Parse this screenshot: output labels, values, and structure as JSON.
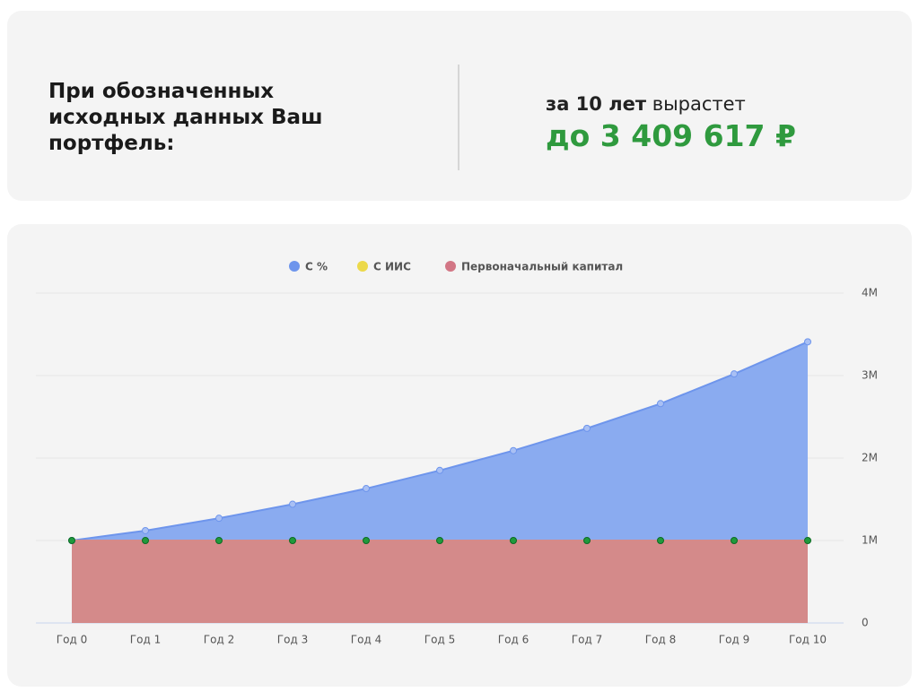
{
  "summary": {
    "text": "При обозначенных исходных данных Ваш портфель:",
    "period": "за 10 лет",
    "verb": "вырастет",
    "result": "до 3 409 617 ₽"
  },
  "chart_data": {
    "type": "area",
    "categories": [
      "Год 0",
      "Год 1",
      "Год 2",
      "Год 3",
      "Год 4",
      "Год 5",
      "Год 6",
      "Год 7",
      "Год 8",
      "Год 9",
      "Год 10"
    ],
    "series": [
      {
        "name": "С %",
        "color": "#6e95ec",
        "values": [
          1000000,
          1120000,
          1270000,
          1440000,
          1630000,
          1850000,
          2090000,
          2360000,
          2660000,
          3020000,
          3409617
        ]
      },
      {
        "name": "С ИИС",
        "color": "#ecd94a",
        "values": [
          null,
          null,
          null,
          null,
          null,
          null,
          null,
          null,
          null,
          null,
          null
        ]
      },
      {
        "name": "Первоначальный капитал",
        "color": "#d27685",
        "marker_color": "#1f9a3c",
        "values": [
          1000000,
          1000000,
          1000000,
          1000000,
          1000000,
          1000000,
          1000000,
          1000000,
          1000000,
          1000000,
          1000000
        ]
      }
    ],
    "ylim": [
      0,
      4000000
    ],
    "yticks": [
      0,
      {
        "value": 1000000,
        "label": "1M"
      },
      {
        "value": 2000000,
        "label": "2M"
      },
      {
        "value": 3000000,
        "label": "3M"
      },
      {
        "value": 4000000,
        "label": "4M"
      }
    ],
    "grid": true,
    "legend": "top"
  }
}
